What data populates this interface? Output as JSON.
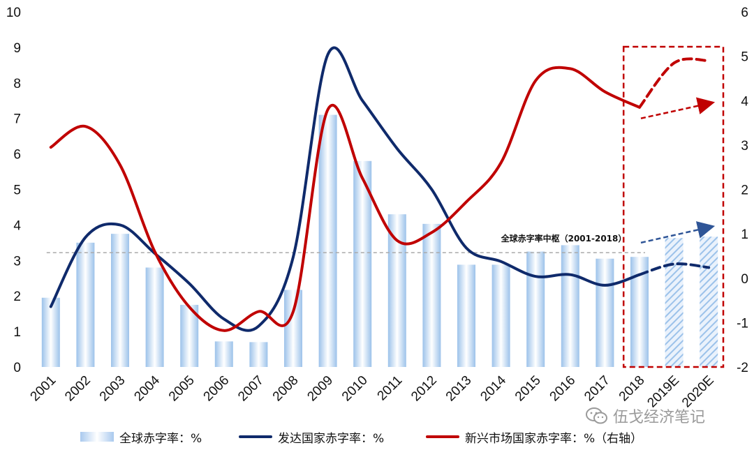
{
  "chart_data": {
    "type": "bar+line",
    "title": "",
    "categories": [
      "2001",
      "2002",
      "2003",
      "2004",
      "2005",
      "2006",
      "2007",
      "2008",
      "2009",
      "2010",
      "2011",
      "2012",
      "2013",
      "2014",
      "2015",
      "2016",
      "2017",
      "2018",
      "2019E",
      "2020E"
    ],
    "left_axis": {
      "ylim": [
        0,
        10
      ],
      "ticks": [
        "0",
        "1",
        "2",
        "3",
        "4",
        "5",
        "6",
        "7",
        "8",
        "9",
        "10"
      ]
    },
    "right_axis": {
      "ylim": [
        -2,
        6
      ],
      "ticks": [
        "-2",
        "-1",
        "0",
        "1",
        "2",
        "3",
        "4",
        "5",
        "6"
      ]
    },
    "series": [
      {
        "name": "全球赤字率：%",
        "kind": "bar",
        "axis": "left",
        "color": "#9cc2ea",
        "values": [
          1.95,
          3.5,
          3.75,
          2.8,
          1.75,
          0.72,
          0.7,
          2.17,
          7.1,
          5.8,
          4.3,
          4.03,
          2.88,
          2.88,
          3.25,
          3.43,
          3.05,
          3.1,
          3.63,
          3.67
        ],
        "hatched_from_index": 18
      },
      {
        "name": "发达国家赤字率：%",
        "kind": "line",
        "axis": "left",
        "color": "#0f2a6b",
        "values": [
          1.7,
          3.65,
          4.0,
          3.2,
          2.35,
          1.35,
          1.15,
          3.1,
          8.8,
          7.5,
          6.15,
          5.0,
          3.35,
          2.97,
          2.55,
          2.6,
          2.3,
          2.6,
          2.9,
          2.8
        ],
        "dashed_from_index": 17
      },
      {
        "name": "新兴市场国家赤字率：%（右轴）",
        "kind": "line",
        "axis": "right",
        "color": "#c00000",
        "values": [
          2.95,
          3.42,
          2.55,
          0.6,
          -0.65,
          -1.18,
          -0.75,
          -0.75,
          3.8,
          2.25,
          0.85,
          1.03,
          1.72,
          2.6,
          4.45,
          4.72,
          4.2,
          3.85,
          4.85,
          4.9
        ],
        "dashed_from_index": 17
      }
    ],
    "reference_line": {
      "label": "全球赤字率中枢（2001-2018）",
      "value": 3.22,
      "axis": "left",
      "color": "#aaaaaa"
    },
    "highlight_box_categories": [
      "2018",
      "2020E"
    ],
    "grid": false,
    "legend_position": "bottom"
  },
  "legend": {
    "bar_label": "全球赤字率：%",
    "dev_label": "发达国家赤字率：%",
    "emg_label": "新兴市场国家赤字率：%（右轴）"
  },
  "watermark": {
    "text": "伍戈经济笔记"
  }
}
